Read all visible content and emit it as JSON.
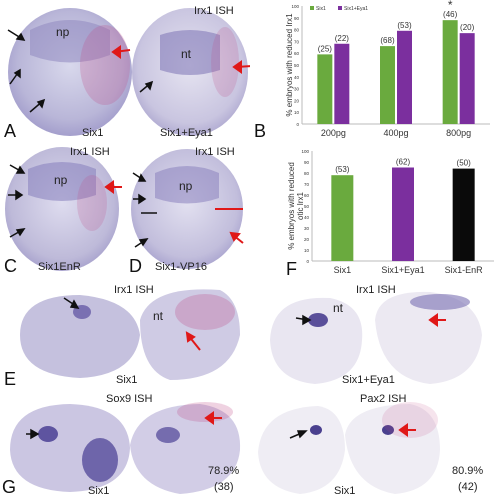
{
  "figure": {
    "panelA": {
      "letter": "A",
      "stain": "Irx1 ISH",
      "np": "np",
      "nt": "nt",
      "left_caption": "Six1",
      "right_caption": "Six1+Eya1"
    },
    "panelC": {
      "letter": "C",
      "stain": "Irx1 ISH",
      "np": "np",
      "caption": "Six1EnR"
    },
    "panelD": {
      "letter": "D",
      "stain": "Irx1 ISH",
      "np": "np",
      "caption": "Six1-VP16"
    },
    "panelE": {
      "letter": "E",
      "stain_left": "Irx1 ISH",
      "stain_right": "Irx1 ISH",
      "nt_left": "nt",
      "nt_right": "nt",
      "caption_left": "Six1",
      "caption_right": "Six1+Eya1"
    },
    "panelG": {
      "letter": "G",
      "stain_left": "Sox9 ISH",
      "stain_right": "Pax2 ISH",
      "caption_left": "Six1",
      "caption_right": "Six1",
      "pct_left": "78.9%",
      "n_left": "(38)",
      "pct_right": "80.9%",
      "n_right": "(42)"
    }
  },
  "colors": {
    "green": "#6aaa3e",
    "purple": "#7b2f9e",
    "black": "#0a0a0a",
    "red_arrow": "#e01818",
    "stain": "#7a6fb4"
  },
  "chart_data": [
    {
      "panel": "B",
      "type": "bar",
      "ylabel": "% embryos with reduced Irx1",
      "categories": [
        "200pg",
        "400pg",
        "800pg"
      ],
      "ylim": [
        0,
        100
      ],
      "yticks": [
        "0",
        "10",
        "20",
        "30",
        "40",
        "50",
        "60",
        "70",
        "80",
        "90",
        "100"
      ],
      "series": [
        {
          "name": "Six1",
          "values": [
            59,
            66,
            88
          ],
          "labels": [
            "(25)",
            "(68)",
            "(46)"
          ]
        },
        {
          "name": "Six1+Eya1",
          "values": [
            68,
            79,
            77
          ],
          "labels": [
            "(22)",
            "(53)",
            "(20)"
          ]
        }
      ],
      "annotation": "*",
      "legend_position": "top-left"
    },
    {
      "panel": "F",
      "type": "bar",
      "ylabel": "% embryos with reduced otic Irx1",
      "categories": [
        "Six1",
        "Six1+Eya1",
        "Six1-EnR"
      ],
      "ylim": [
        0,
        100
      ],
      "yticks": [
        "0",
        "10",
        "20",
        "30",
        "40",
        "50",
        "60",
        "70",
        "80",
        "90",
        "100"
      ],
      "values": [
        78,
        85,
        84
      ],
      "labels": [
        "(53)",
        "(62)",
        "(50)"
      ],
      "bar_colors": [
        "#6aaa3e",
        "#7b2f9e",
        "#0a0a0a"
      ]
    }
  ]
}
